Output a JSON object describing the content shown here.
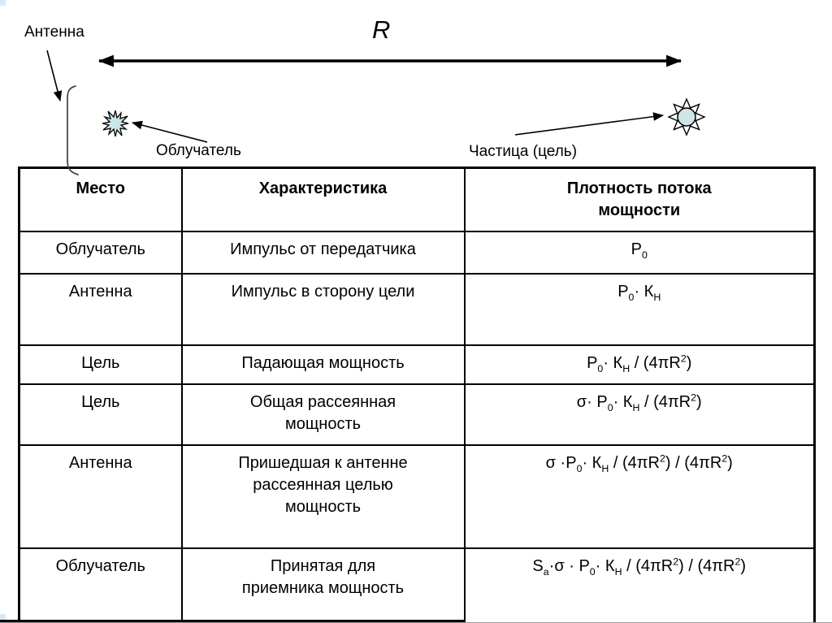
{
  "diagram": {
    "antenna_label": "Антенна",
    "range_label": "R",
    "feed_label": "Облучатель",
    "target_label": "Частица (цель)",
    "icon_fill": "#cde6ea"
  },
  "table": {
    "columns": [
      "Место",
      "Характеристика",
      "Плотность потока\nмощности"
    ],
    "rows": [
      {
        "place": "Облучатель",
        "characteristic": "Импульс от передатчика",
        "formula": "P_{0}"
      },
      {
        "place": "Антенна",
        "characteristic": "Импульс в сторону цели",
        "formula": "P_{0}· К_{Н}"
      },
      {
        "place": "Цель",
        "characteristic": "Падающая мощность",
        "formula": "P_{0}· К_{Н} / (4πR^{2})"
      },
      {
        "place": "Цель",
        "characteristic": "Общая рассеянная\nмощность",
        "formula": "σ· P_{0}· К_{Н} / (4πR^{2})"
      },
      {
        "place": "Антенна",
        "characteristic": "Пришедшая к антенне\nрассеянная целью\nмощность",
        "formula": "σ ·P_{0}· К_{Н} / (4πR^{2}) / (4πR^{2})"
      },
      {
        "place": "Облучатель",
        "characteristic": "Принятая для\nприемника мощность",
        "formula": "S_{a}·σ · P_{0}· К_{Н} / (4πR^{2}) / (4πR^{2})"
      }
    ]
  }
}
